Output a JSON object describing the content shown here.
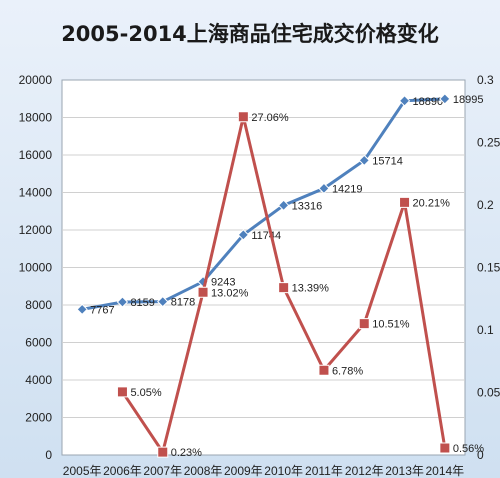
{
  "chart_data": {
    "type": "line",
    "title": "2005-2014上海商品住宅成交价格变化",
    "categories": [
      "2005年",
      "2006年",
      "2007年",
      "2008年",
      "2009年",
      "2010年",
      "2011年",
      "2012年",
      "2013年",
      "2014年"
    ],
    "series": [
      {
        "values": [
          7767,
          8159,
          8178,
          9243,
          11744,
          13316,
          14219,
          15714,
          18890,
          18995
        ],
        "labels": [
          "7767",
          "8159",
          "8178",
          "9243",
          "11744",
          "13316",
          "14219",
          "15714",
          "18890",
          "18995"
        ],
        "axis": "left",
        "marker": "diamond",
        "color": "#4f81bd"
      },
      {
        "values": [
          null,
          0.0505,
          0.0023,
          0.1302,
          0.2706,
          0.1339,
          0.0678,
          0.1051,
          0.2021,
          0.0056
        ],
        "labels": [
          "",
          "5.05%",
          "0.23%",
          "13.02%",
          "27.06%",
          "13.39%",
          "6.78%",
          "10.51%",
          "20.21%",
          "0.56%"
        ],
        "axis": "right",
        "marker": "square",
        "color": "#c0504d"
      }
    ],
    "ylim_left": [
      0,
      20000
    ],
    "yticks_left": [
      "0",
      "2000",
      "4000",
      "6000",
      "8000",
      "10000",
      "12000",
      "14000",
      "16000",
      "18000",
      "20000"
    ],
    "ylim_right": [
      0,
      0.3
    ],
    "yticks_right": [
      "0",
      "0.05",
      "0.1",
      "0.15",
      "0.2",
      "0.25",
      "0.3"
    ],
    "grid": true
  }
}
